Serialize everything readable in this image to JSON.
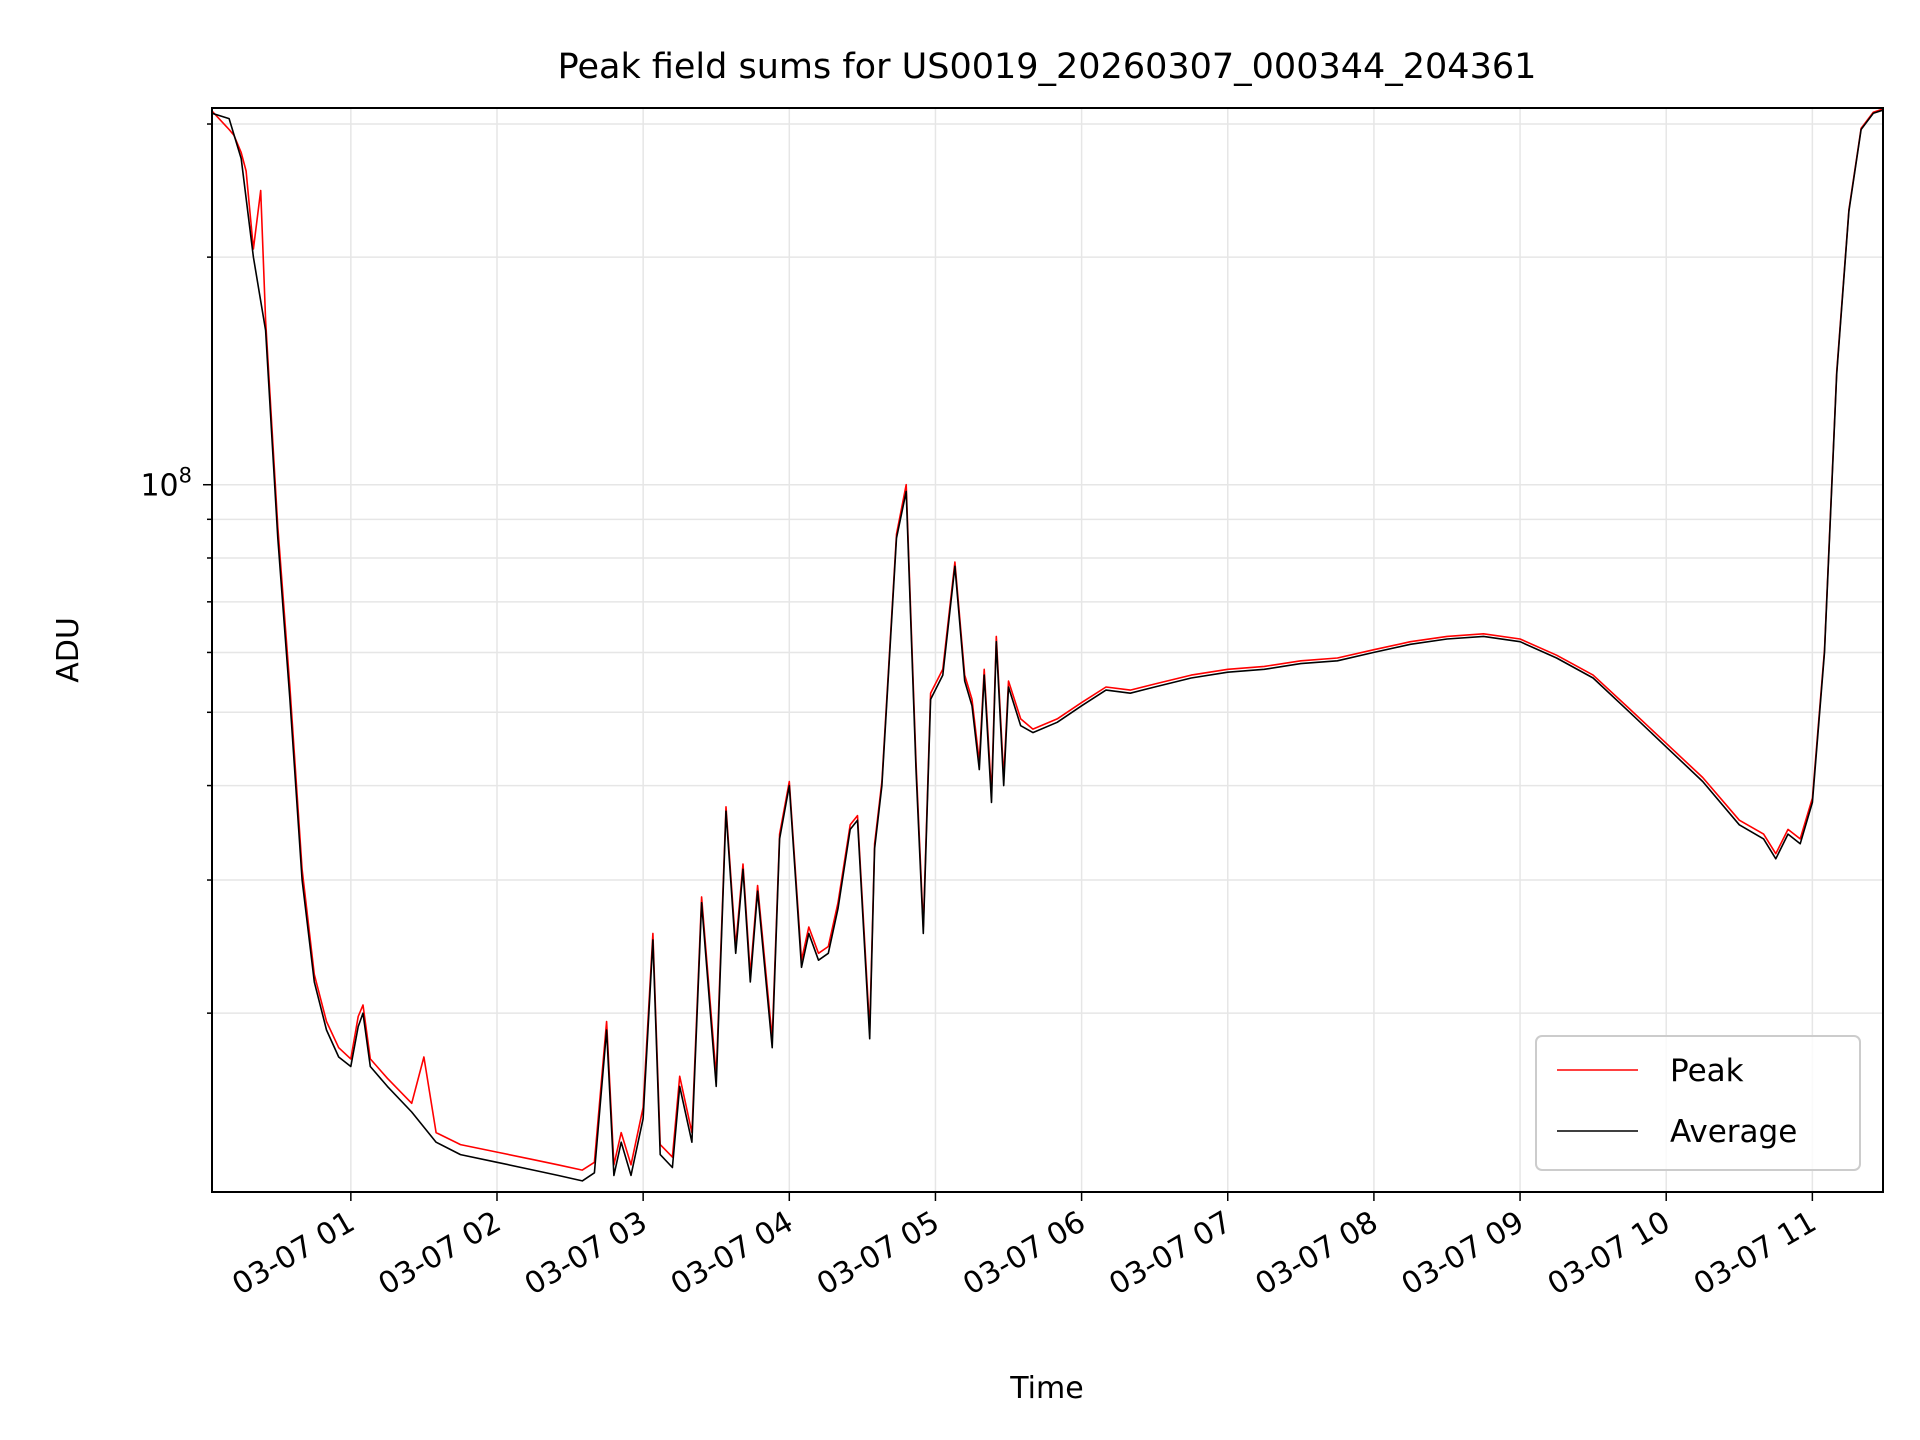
{
  "chart_data": {
    "type": "line",
    "title": "Peak field sums for US0019_20260307_000344_204361",
    "xlabel": "Time",
    "ylabel": "ADU",
    "y_scale": "log",
    "ylim": [
      11600000,
      315000000
    ],
    "xlim": [
      "2026-03-07 00:03",
      "2026-03-07 11:29"
    ],
    "grid": true,
    "legend_position": "lower right",
    "colors": {
      "Peak": "#ff0000",
      "Average": "#000000"
    },
    "y_ticks": [
      {
        "value": 100000000,
        "mantissa": "10",
        "exponent": "8"
      }
    ],
    "x_ticks": [
      {
        "value": "2026-03-07 01:00",
        "label": "03-07 01"
      },
      {
        "value": "2026-03-07 02:00",
        "label": "03-07 02"
      },
      {
        "value": "2026-03-07 03:00",
        "label": "03-07 03"
      },
      {
        "value": "2026-03-07 04:00",
        "label": "03-07 04"
      },
      {
        "value": "2026-03-07 05:00",
        "label": "03-07 05"
      },
      {
        "value": "2026-03-07 06:00",
        "label": "03-07 06"
      },
      {
        "value": "2026-03-07 07:00",
        "label": "03-07 07"
      },
      {
        "value": "2026-03-07 08:00",
        "label": "03-07 08"
      },
      {
        "value": "2026-03-07 09:00",
        "label": "03-07 09"
      },
      {
        "value": "2026-03-07 10:00",
        "label": "03-07 10"
      },
      {
        "value": "2026-03-07 11:00",
        "label": "03-07 11"
      }
    ],
    "series": [
      {
        "name": "Average",
        "x": [
          "2026-03-07 00:03",
          "2026-03-07 00:10",
          "2026-03-07 00:15",
          "2026-03-07 00:20",
          "2026-03-07 00:25",
          "2026-03-07 00:30",
          "2026-03-07 00:35",
          "2026-03-07 00:40",
          "2026-03-07 00:45",
          "2026-03-07 00:50",
          "2026-03-07 00:55",
          "2026-03-07 01:00",
          "2026-03-07 01:03",
          "2026-03-07 01:05",
          "2026-03-07 01:08",
          "2026-03-07 01:15",
          "2026-03-07 01:25",
          "2026-03-07 01:35",
          "2026-03-07 01:45",
          "2026-03-07 02:00",
          "2026-03-07 02:15",
          "2026-03-07 02:25",
          "2026-03-07 02:35",
          "2026-03-07 02:40",
          "2026-03-07 02:45",
          "2026-03-07 02:48",
          "2026-03-07 02:51",
          "2026-03-07 02:55",
          "2026-03-07 03:00",
          "2026-03-07 03:04",
          "2026-03-07 03:07",
          "2026-03-07 03:12",
          "2026-03-07 03:15",
          "2026-03-07 03:20",
          "2026-03-07 03:24",
          "2026-03-07 03:30",
          "2026-03-07 03:34",
          "2026-03-07 03:38",
          "2026-03-07 03:41",
          "2026-03-07 03:44",
          "2026-03-07 03:47",
          "2026-03-07 03:53",
          "2026-03-07 03:56",
          "2026-03-07 04:00",
          "2026-03-07 04:05",
          "2026-03-07 04:08",
          "2026-03-07 04:12",
          "2026-03-07 04:16",
          "2026-03-07 04:20",
          "2026-03-07 04:25",
          "2026-03-07 04:28",
          "2026-03-07 04:33",
          "2026-03-07 04:35",
          "2026-03-07 04:38",
          "2026-03-07 04:44",
          "2026-03-07 04:48",
          "2026-03-07 04:52",
          "2026-03-07 04:55",
          "2026-03-07 04:58",
          "2026-03-07 05:03",
          "2026-03-07 05:08",
          "2026-03-07 05:12",
          "2026-03-07 05:15",
          "2026-03-07 05:18",
          "2026-03-07 05:20",
          "2026-03-07 05:23",
          "2026-03-07 05:25",
          "2026-03-07 05:28",
          "2026-03-07 05:30",
          "2026-03-07 05:35",
          "2026-03-07 05:40",
          "2026-03-07 05:50",
          "2026-03-07 06:00",
          "2026-03-07 06:10",
          "2026-03-07 06:20",
          "2026-03-07 06:30",
          "2026-03-07 06:45",
          "2026-03-07 07:00",
          "2026-03-07 07:15",
          "2026-03-07 07:30",
          "2026-03-07 07:45",
          "2026-03-07 08:00",
          "2026-03-07 08:15",
          "2026-03-07 08:30",
          "2026-03-07 08:45",
          "2026-03-07 09:00",
          "2026-03-07 09:15",
          "2026-03-07 09:30",
          "2026-03-07 09:45",
          "2026-03-07 10:00",
          "2026-03-07 10:15",
          "2026-03-07 10:30",
          "2026-03-07 10:40",
          "2026-03-07 10:45",
          "2026-03-07 10:50",
          "2026-03-07 10:55",
          "2026-03-07 11:00",
          "2026-03-07 11:05",
          "2026-03-07 11:10",
          "2026-03-07 11:15",
          "2026-03-07 11:20",
          "2026-03-07 11:25",
          "2026-03-07 11:29"
        ],
        "y": [
          310000000,
          305000000,
          270000000,
          200000000,
          160000000,
          85000000,
          52000000,
          30000000,
          22000000,
          19000000,
          17500000,
          17000000,
          19200000,
          20000000,
          17000000,
          16000000,
          14800000,
          13500000,
          13000000,
          12700000,
          12400000,
          12200000,
          12000000,
          12300000,
          19000000,
          12200000,
          13500000,
          12200000,
          14500000,
          25000000,
          13000000,
          12500000,
          16000000,
          13500000,
          28000000,
          16000000,
          37000000,
          24000000,
          31000000,
          22000000,
          29000000,
          18000000,
          34000000,
          40000000,
          23000000,
          25500000,
          23500000,
          24000000,
          27500000,
          35000000,
          36000000,
          18500000,
          33000000,
          40000000,
          85000000,
          98000000,
          42000000,
          25500000,
          52000000,
          56000000,
          78000000,
          55000000,
          51000000,
          42000000,
          56000000,
          38000000,
          62000000,
          40000000,
          54000000,
          48000000,
          47000000,
          48500000,
          51000000,
          53500000,
          53000000,
          54000000,
          55500000,
          56500000,
          57000000,
          58000000,
          58500000,
          60000000,
          61500000,
          62500000,
          63000000,
          62000000,
          59000000,
          55500000,
          50000000,
          45000000,
          40500000,
          35500000,
          34000000,
          32000000,
          34500000,
          33500000,
          38000000,
          60000000,
          140000000,
          230000000,
          295000000,
          310000000,
          313000000
        ]
      },
      {
        "name": "Peak",
        "x": [
          "2026-03-07 00:03",
          "2026-03-07 00:10",
          "2026-03-07 00:12",
          "2026-03-07 00:15",
          "2026-03-07 00:17",
          "2026-03-07 00:20",
          "2026-03-07 00:23",
          "2026-03-07 00:25",
          "2026-03-07 00:30",
          "2026-03-07 00:35",
          "2026-03-07 00:40",
          "2026-03-07 00:45",
          "2026-03-07 00:50",
          "2026-03-07 00:55",
          "2026-03-07 01:00",
          "2026-03-07 01:03",
          "2026-03-07 01:05",
          "2026-03-07 01:08",
          "2026-03-07 01:15",
          "2026-03-07 01:25",
          "2026-03-07 01:30",
          "2026-03-07 01:35",
          "2026-03-07 01:45",
          "2026-03-07 02:00",
          "2026-03-07 02:15",
          "2026-03-07 02:25",
          "2026-03-07 02:35",
          "2026-03-07 02:40",
          "2026-03-07 02:45",
          "2026-03-07 02:48",
          "2026-03-07 02:51",
          "2026-03-07 02:55",
          "2026-03-07 03:00",
          "2026-03-07 03:04",
          "2026-03-07 03:07",
          "2026-03-07 03:12",
          "2026-03-07 03:15",
          "2026-03-07 03:20",
          "2026-03-07 03:24",
          "2026-03-07 03:30",
          "2026-03-07 03:34",
          "2026-03-07 03:38",
          "2026-03-07 03:41",
          "2026-03-07 03:44",
          "2026-03-07 03:47",
          "2026-03-07 03:53",
          "2026-03-07 03:56",
          "2026-03-07 04:00",
          "2026-03-07 04:05",
          "2026-03-07 04:08",
          "2026-03-07 04:12",
          "2026-03-07 04:16",
          "2026-03-07 04:20",
          "2026-03-07 04:25",
          "2026-03-07 04:28",
          "2026-03-07 04:33",
          "2026-03-07 04:35",
          "2026-03-07 04:38",
          "2026-03-07 04:44",
          "2026-03-07 04:48",
          "2026-03-07 04:52",
          "2026-03-07 04:55",
          "2026-03-07 04:58",
          "2026-03-07 05:03",
          "2026-03-07 05:08",
          "2026-03-07 05:12",
          "2026-03-07 05:15",
          "2026-03-07 05:18",
          "2026-03-07 05:20",
          "2026-03-07 05:23",
          "2026-03-07 05:25",
          "2026-03-07 05:28",
          "2026-03-07 05:30",
          "2026-03-07 05:35",
          "2026-03-07 05:40",
          "2026-03-07 05:50",
          "2026-03-07 06:00",
          "2026-03-07 06:10",
          "2026-03-07 06:20",
          "2026-03-07 06:30",
          "2026-03-07 06:45",
          "2026-03-07 07:00",
          "2026-03-07 07:15",
          "2026-03-07 07:30",
          "2026-03-07 07:45",
          "2026-03-07 08:00",
          "2026-03-07 08:15",
          "2026-03-07 08:30",
          "2026-03-07 08:45",
          "2026-03-07 09:00",
          "2026-03-07 09:15",
          "2026-03-07 09:30",
          "2026-03-07 09:45",
          "2026-03-07 10:00",
          "2026-03-07 10:15",
          "2026-03-07 10:30",
          "2026-03-07 10:40",
          "2026-03-07 10:45",
          "2026-03-07 10:50",
          "2026-03-07 10:55",
          "2026-03-07 11:00",
          "2026-03-07 11:05",
          "2026-03-07 11:10",
          "2026-03-07 11:15",
          "2026-03-07 11:20",
          "2026-03-07 11:25",
          "2026-03-07 11:29"
        ],
        "y": [
          312000000,
          295000000,
          290000000,
          275000000,
          260000000,
          205000000,
          245000000,
          165000000,
          88000000,
          54000000,
          31000000,
          22500000,
          19500000,
          18000000,
          17400000,
          19800000,
          20500000,
          17400000,
          16400000,
          15200000,
          17500000,
          13900000,
          13400000,
          13100000,
          12800000,
          12600000,
          12400000,
          12700000,
          19500000,
          12600000,
          13900000,
          12600000,
          15000000,
          25500000,
          13400000,
          12900000,
          16500000,
          13900000,
          28500000,
          16500000,
          37500000,
          24500000,
          31500000,
          22500000,
          29500000,
          18500000,
          34500000,
          40500000,
          23500000,
          26000000,
          24000000,
          24500000,
          28000000,
          35500000,
          36500000,
          19000000,
          33500000,
          40500000,
          86000000,
          100000000,
          43000000,
          26000000,
          53000000,
          57000000,
          79000000,
          56000000,
          52000000,
          43000000,
          57000000,
          39000000,
          63000000,
          41000000,
          55000000,
          49000000,
          47500000,
          49000000,
          51500000,
          54000000,
          53500000,
          54500000,
          56000000,
          57000000,
          57500000,
          58500000,
          59000000,
          60500000,
          62000000,
          63000000,
          63500000,
          62500000,
          59500000,
          56000000,
          50500000,
          45500000,
          41000000,
          36000000,
          34500000,
          32500000,
          35000000,
          34000000,
          38500000,
          60500000,
          141000000,
          231000000,
          296000000,
          311000000,
          314000000
        ]
      }
    ]
  }
}
